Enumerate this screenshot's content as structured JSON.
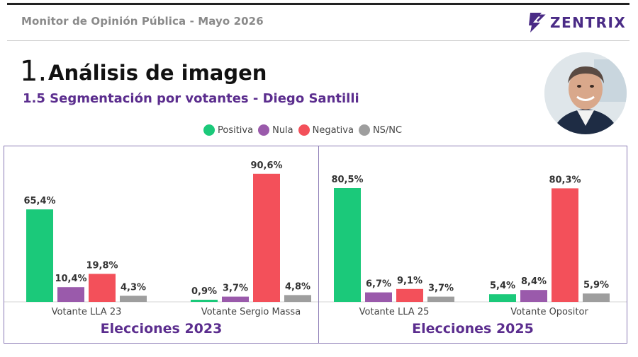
{
  "header": {
    "title": "Monitor de Opinión Pública - Mayo 2026",
    "brand": "ZENTRIX"
  },
  "section": {
    "number": "1.",
    "title": "Análisis de imagen",
    "subtitle": "1.5 Segmentación por votantes - Diego Santilli"
  },
  "colors": {
    "Positiva": "#1bc97a",
    "Nula": "#9a5aab",
    "Negativa": "#f3505a",
    "NS/NC": "#9e9e9e",
    "accent": "#5b2d8e"
  },
  "legend": [
    "Positiva",
    "Nula",
    "Negativa",
    "NS/NC"
  ],
  "chart_data": [
    {
      "type": "bar",
      "title": "Elecciones 2023",
      "categories": [
        "Votante LLA 23",
        "Votante Sergio Massa"
      ],
      "series": [
        {
          "name": "Positiva",
          "values": [
            65.4,
            0.9
          ],
          "labels": [
            "65,4%",
            "0,9%"
          ]
        },
        {
          "name": "Nula",
          "values": [
            10.4,
            3.7
          ],
          "labels": [
            "10,4%",
            "3,7%"
          ]
        },
        {
          "name": "Negativa",
          "values": [
            19.8,
            90.6
          ],
          "labels": [
            "19,8%",
            "90,6%"
          ]
        },
        {
          "name": "NS/NC",
          "values": [
            4.3,
            4.8
          ],
          "labels": [
            "4,3%",
            "4,8%"
          ]
        }
      ],
      "ylim": [
        0,
        100
      ],
      "grid": false,
      "legend_position": "top"
    },
    {
      "type": "bar",
      "title": "Elecciones 2025",
      "categories": [
        "Votante LLA 25",
        "Votante Opositor"
      ],
      "series": [
        {
          "name": "Positiva",
          "values": [
            80.5,
            5.4
          ],
          "labels": [
            "80,5%",
            "5,4%"
          ]
        },
        {
          "name": "Nula",
          "values": [
            6.7,
            8.4
          ],
          "labels": [
            "6,7%",
            "8,4%"
          ]
        },
        {
          "name": "Negativa",
          "values": [
            9.1,
            80.3
          ],
          "labels": [
            "9,1%",
            "80,3%"
          ]
        },
        {
          "name": "NS/NC",
          "values": [
            3.7,
            5.9
          ],
          "labels": [
            "3,7%",
            "5,9%"
          ]
        }
      ],
      "ylim": [
        0,
        100
      ],
      "grid": false,
      "legend_position": "top"
    }
  ]
}
